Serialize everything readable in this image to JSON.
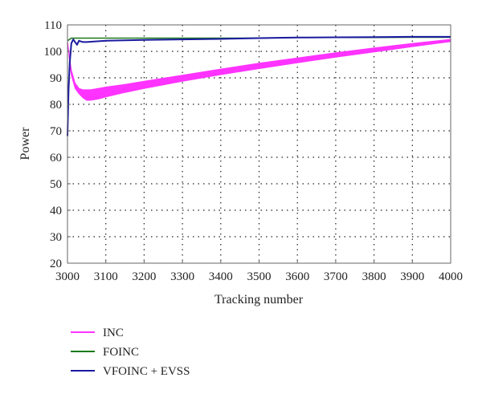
{
  "chart_data": {
    "type": "line",
    "xlabel": "Tracking number",
    "ylabel": "Power",
    "xlim": [
      3000,
      4000
    ],
    "ylim": [
      20,
      110
    ],
    "xticks": [
      3000,
      3100,
      3200,
      3300,
      3400,
      3500,
      3600,
      3700,
      3800,
      3900,
      4000
    ],
    "yticks": [
      20,
      30,
      40,
      50,
      60,
      70,
      80,
      90,
      100,
      110
    ],
    "grid": true,
    "legend_position": "bottom-left, below plot",
    "series": [
      {
        "name": "INC",
        "color": "#ff33ff",
        "band": true,
        "x": [
          3000,
          3005,
          3010,
          3020,
          3030,
          3040,
          3050,
          3060,
          3080,
          3100,
          3150,
          3200,
          3300,
          3400,
          3500,
          3600,
          3700,
          3800,
          3900,
          4000
        ],
        "upper": [
          104,
          98,
          93,
          88,
          86,
          85.5,
          85.5,
          85.5,
          86,
          86.5,
          87.5,
          88.7,
          91,
          93.3,
          95.5,
          97.5,
          99.5,
          101.3,
          103,
          104.5
        ],
        "lower": [
          104,
          97,
          91,
          86,
          84,
          82.5,
          81.5,
          81.5,
          82,
          82.8,
          84.5,
          86,
          88.7,
          91.2,
          93.5,
          95.7,
          97.8,
          99.8,
          101.8,
          103.7
        ]
      },
      {
        "name": "FOINC",
        "color": "#1a7a1a",
        "x": [
          3000,
          3005,
          3010,
          3020,
          3050,
          3100,
          3200,
          3300,
          3400,
          3500,
          3600,
          3700,
          3800,
          3900,
          4000
        ],
        "y": [
          104,
          104.5,
          105,
          105,
          105,
          105,
          105,
          105,
          105,
          105,
          105.2,
          105.2,
          105.2,
          105.3,
          105.3
        ]
      },
      {
        "name": "VFOINC + EVSS",
        "color": "#1a1aa0",
        "x": [
          3000,
          3003,
          3006,
          3010,
          3015,
          3020,
          3025,
          3030,
          3040,
          3050,
          3100,
          3200,
          3300,
          3400,
          3500,
          3600,
          3700,
          3800,
          3900,
          4000
        ],
        "y": [
          68,
          86,
          96,
          103,
          104.5,
          103.5,
          102.5,
          104,
          103.5,
          103.5,
          104,
          104.3,
          104.5,
          104.7,
          105,
          105.2,
          105.3,
          105.4,
          105.5,
          105.5
        ]
      }
    ]
  }
}
